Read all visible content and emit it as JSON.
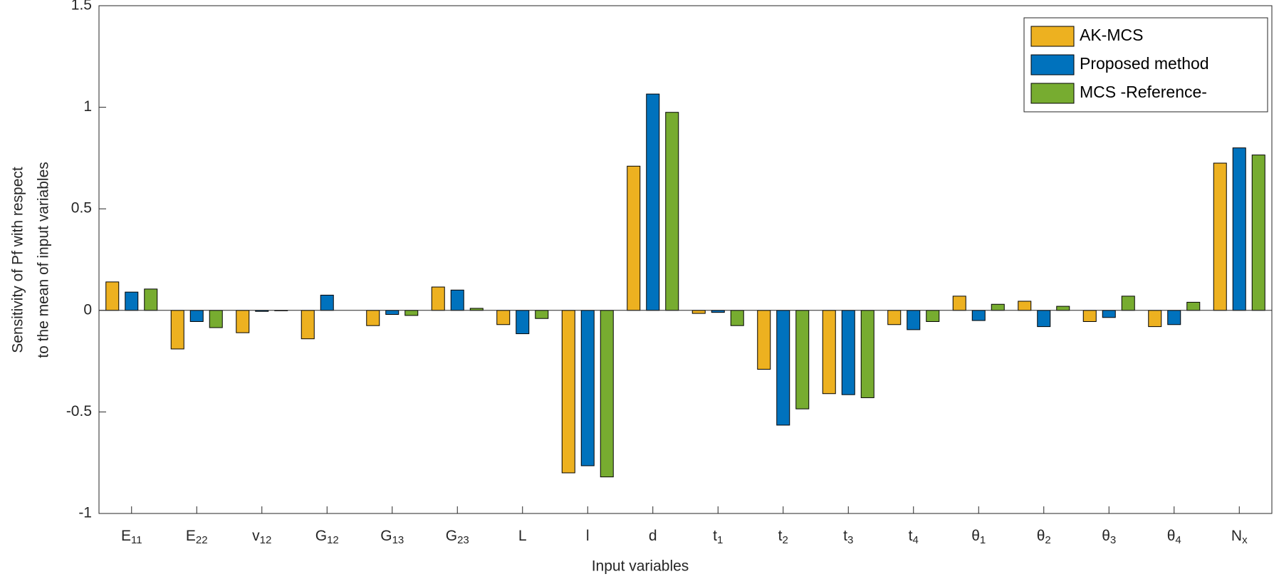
{
  "chart_data": {
    "type": "bar",
    "xlabel": "Input variables",
    "ylabel": [
      "Sensitivity of Pf with respect",
      "to the mean of input variables"
    ],
    "categories": [
      "E11",
      "E22",
      "v12",
      "G12",
      "G13",
      "G23",
      "L",
      "l",
      "d",
      "t1",
      "t2",
      "t3",
      "t4",
      "θ1",
      "θ2",
      "θ3",
      "θ4",
      "Nx"
    ],
    "series": [
      {
        "name": "AK-MCS",
        "color": "#EDB120",
        "values": [
          0.14,
          -0.19,
          -0.11,
          -0.14,
          -0.075,
          0.115,
          -0.07,
          -0.8,
          0.71,
          -0.015,
          -0.29,
          -0.41,
          -0.07,
          0.07,
          0.045,
          -0.055,
          -0.08,
          0.725
        ]
      },
      {
        "name": "Proposed method",
        "color": "#0072BD",
        "values": [
          0.09,
          -0.055,
          -0.005,
          0.075,
          -0.02,
          0.1,
          -0.115,
          -0.765,
          1.065,
          -0.01,
          -0.565,
          -0.415,
          -0.095,
          -0.05,
          -0.08,
          -0.035,
          -0.07,
          0.8
        ]
      },
      {
        "name": "MCS -Reference-",
        "color": "#77AC30",
        "values": [
          0.105,
          -0.085,
          -0.002,
          0.0,
          -0.025,
          0.01,
          -0.04,
          -0.82,
          0.975,
          -0.075,
          -0.485,
          -0.43,
          -0.055,
          0.03,
          0.02,
          0.07,
          0.04,
          0.765
        ]
      }
    ],
    "ylim": [
      -1,
      1.5
    ],
    "yticks": [
      -1,
      -0.5,
      0,
      0.5,
      1,
      1.5
    ],
    "grid": false,
    "legend": "upper right"
  }
}
